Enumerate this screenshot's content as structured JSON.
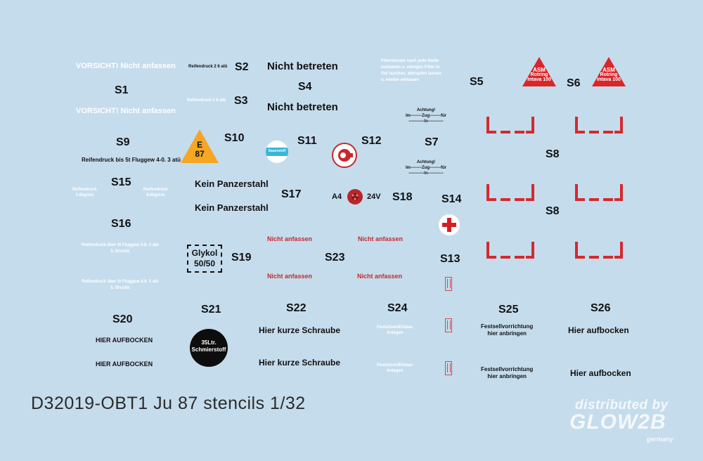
{
  "sheet_title": "D32019-OBT1 Ju 87 stencils 1/32",
  "watermark": {
    "line1": "distributed by",
    "line2": "GLOW2B",
    "line3": "germany"
  },
  "labels": {
    "s1": "S1",
    "s2": "S2",
    "s3": "S3",
    "s4": "S4",
    "s5": "S5",
    "s6": "S6",
    "s7": "S7",
    "s8a": "S8",
    "s8b": "S8",
    "s9": "S9",
    "s10": "S10",
    "s11": "S11",
    "s12": "S12",
    "s13": "S13",
    "s14": "S14",
    "s15": "S15",
    "s16": "S16",
    "s17": "S17",
    "s18": "S18",
    "s19": "S19",
    "s20": "S20",
    "s21": "S21",
    "s22": "S22",
    "s23": "S23",
    "s24": "S24",
    "s25": "S25",
    "s26": "S26"
  },
  "stencils": {
    "vorsicht1": "VORSICHT! Nicht anfassen",
    "vorsicht2": "VORSICHT! Nicht anfassen",
    "reifendruck_s2": "Reifendruck 2 6 atü",
    "reifendruck_s3": "Reifendruck 2 6 atü",
    "nicht_betreten1": "Nicht betreten",
    "nicht_betreten2": "Nicht betreten",
    "fuelfilter": [
      "Filtereinsatz nach jede Stelle",
      "ausbauen u. reinigen Filter in",
      "Oel tauchen, abtropfen lassen",
      "u. wieder einbauen"
    ],
    "triangle_s5": [
      "ASM",
      "Rotring",
      "Intava 100"
    ],
    "triangle_s6": [
      "ASM",
      "Rotring",
      "Intava 100"
    ],
    "achtung1": [
      "Achtung!",
      "Im--------Zug--------für",
      "-----------In-----------"
    ],
    "achtung2": [
      "Achtung!",
      "Im--------Zug--------für",
      "-----------In-----------"
    ],
    "reifendruck_s9": "Reifendruck bis 5t Fluggew 4-0. 3 atü",
    "e87": [
      "E",
      "87"
    ],
    "sauerstoff": "Sauerstoff",
    "kein_panzerstahl1": "Kein Panzerstahl",
    "kein_panzerstahl2": "Kein Panzerstahl",
    "reifendruck_s15a": [
      "Reifendruck",
      "3.6kg/cm"
    ],
    "reifendruck_s15b": [
      "Reifendruck",
      "6.6kg/cm"
    ],
    "a4": "A4",
    "v24": "24V",
    "reifendruck_s16a": [
      "Reifendruck über 5t Fluggew 4.8. 3 atü",
      "5. Druckk"
    ],
    "reifendruck_s16b": [
      "Reifendruck über 5t Fluggew 4.8. 3 atü",
      "5. Druckk"
    ],
    "glykol": [
      "Glykol",
      "50/50"
    ],
    "nicht_anfassen1": "Nicht anfassen",
    "nicht_anfassen2": "Nicht anfassen",
    "nicht_anfassen3": "Nicht anfassen",
    "nicht_anfassen4": "Nicht anfassen",
    "hier_aufbocken_s20a": "HIER AUFBOCKEN",
    "hier_aufbocken_s20b": "HIER AUFBOCKEN",
    "schmierstoff": [
      "35Ltr.",
      "Schmierstoff"
    ],
    "hier_kurze_schraube1": "Hier kurze Schraube",
    "hier_kurze_schraube2": "Hier kurze Schraube",
    "fest_s24a": [
      "Festsitzen/Einbau",
      "Anlegen"
    ],
    "fest_s24b": [
      "Festsitzen/Einbau",
      "Anlegen"
    ],
    "festsell1": [
      "Festsellvorrichtung",
      "hier anbringen"
    ],
    "festsell2": [
      "Festsellvorrichtung",
      "hier anbringen"
    ],
    "hier_aufbocken_s26a": "Hier aufbocken",
    "hier_aufbocken_s26b": "Hier aufbocken"
  },
  "colors": {
    "background": "#c5dcec",
    "stencil_red": "#c8282c",
    "triangle_red": "#d9262a",
    "orange": "#f5a623",
    "sauerstoff_blue": "#38b6d8"
  }
}
